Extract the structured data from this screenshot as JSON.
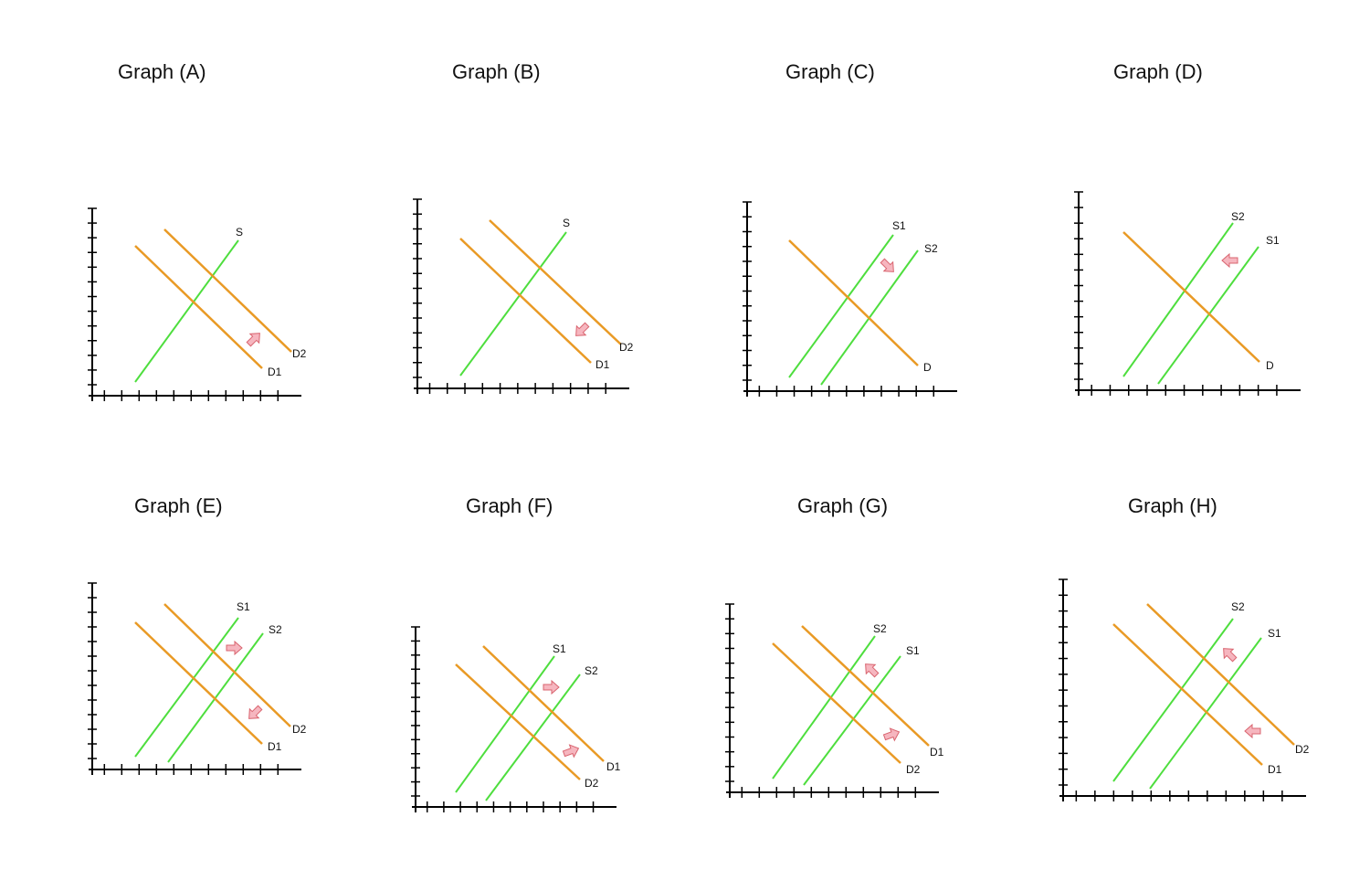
{
  "colors": {
    "supply": "#4ede3e",
    "demand": "#e99a25",
    "shift_arrow": "#f6b6bf",
    "axis": "#000000"
  },
  "graphs": [
    {
      "id": "A",
      "title": "Graph (A)",
      "supply": [
        {
          "label": "S"
        }
      ],
      "demand": [
        {
          "label": "D1"
        },
        {
          "label": "D2"
        }
      ],
      "shifts": [
        "demand-right"
      ]
    },
    {
      "id": "B",
      "title": "Graph (B)",
      "supply": [
        {
          "label": "S"
        }
      ],
      "demand": [
        {
          "label": "D1"
        },
        {
          "label": "D2"
        }
      ],
      "shifts": [
        "demand-left"
      ]
    },
    {
      "id": "C",
      "title": "Graph (C)",
      "supply": [
        {
          "label": "S1"
        },
        {
          "label": "S2"
        }
      ],
      "demand": [
        {
          "label": "D"
        }
      ],
      "shifts": [
        "supply-right"
      ]
    },
    {
      "id": "D",
      "title": "Graph (D)",
      "supply": [
        {
          "label": "S2"
        },
        {
          "label": "S1"
        }
      ],
      "demand": [
        {
          "label": "D"
        }
      ],
      "shifts": [
        "supply-left"
      ]
    },
    {
      "id": "E",
      "title": "Graph (E)",
      "supply": [
        {
          "label": "S1"
        },
        {
          "label": "S2"
        }
      ],
      "demand": [
        {
          "label": "D1"
        },
        {
          "label": "D2"
        }
      ],
      "shifts": [
        "supply-right",
        "demand-left"
      ]
    },
    {
      "id": "F",
      "title": "Graph (F)",
      "supply": [
        {
          "label": "S1"
        },
        {
          "label": "S2"
        }
      ],
      "demand": [
        {
          "label": "D2"
        },
        {
          "label": "D1"
        }
      ],
      "shifts": [
        "supply-right",
        "demand-right"
      ]
    },
    {
      "id": "G",
      "title": "Graph (G)",
      "supply": [
        {
          "label": "S2"
        },
        {
          "label": "S1"
        }
      ],
      "demand": [
        {
          "label": "D2"
        },
        {
          "label": "D1"
        }
      ],
      "shifts": [
        "supply-left",
        "demand-right"
      ]
    },
    {
      "id": "H",
      "title": "Graph (H)",
      "supply": [
        {
          "label": "S2"
        },
        {
          "label": "S1"
        }
      ],
      "demand": [
        {
          "label": "D1"
        },
        {
          "label": "D2"
        }
      ],
      "shifts": [
        "supply-left",
        "demand-left"
      ]
    }
  ]
}
